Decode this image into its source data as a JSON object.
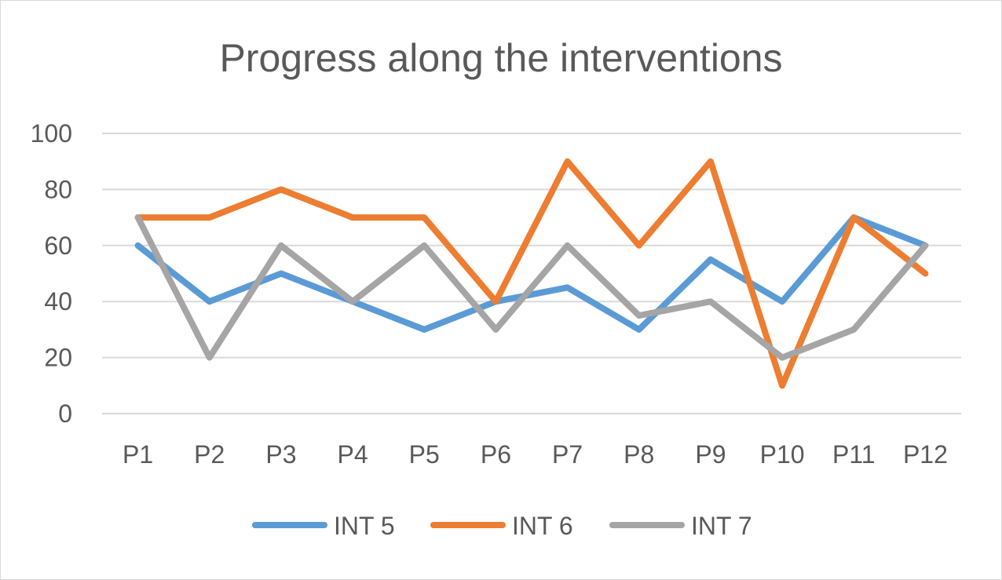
{
  "chart_data": {
    "type": "line",
    "title": "Progress along the interventions",
    "categories": [
      "P1",
      "P2",
      "P3",
      "P4",
      "P5",
      "P6",
      "P7",
      "P8",
      "P9",
      "P10",
      "P11",
      "P12"
    ],
    "series": [
      {
        "name": "INT 5",
        "color": "#5b9bd5",
        "values": [
          60,
          40,
          50,
          40,
          30,
          40,
          45,
          30,
          55,
          40,
          70,
          60
        ]
      },
      {
        "name": "INT 6",
        "color": "#ed7d31",
        "values": [
          70,
          70,
          80,
          70,
          70,
          40,
          90,
          60,
          90,
          10,
          70,
          50
        ]
      },
      {
        "name": "INT 7",
        "color": "#a5a5a5",
        "values": [
          70,
          20,
          60,
          40,
          60,
          30,
          60,
          35,
          40,
          20,
          30,
          60
        ]
      }
    ],
    "ylim": [
      0,
      100
    ],
    "yticks": [
      0,
      20,
      40,
      60,
      80,
      100
    ],
    "grid": true,
    "legend": "bottom",
    "gridColor": "#d9d9d9",
    "textColor": "#595959"
  }
}
